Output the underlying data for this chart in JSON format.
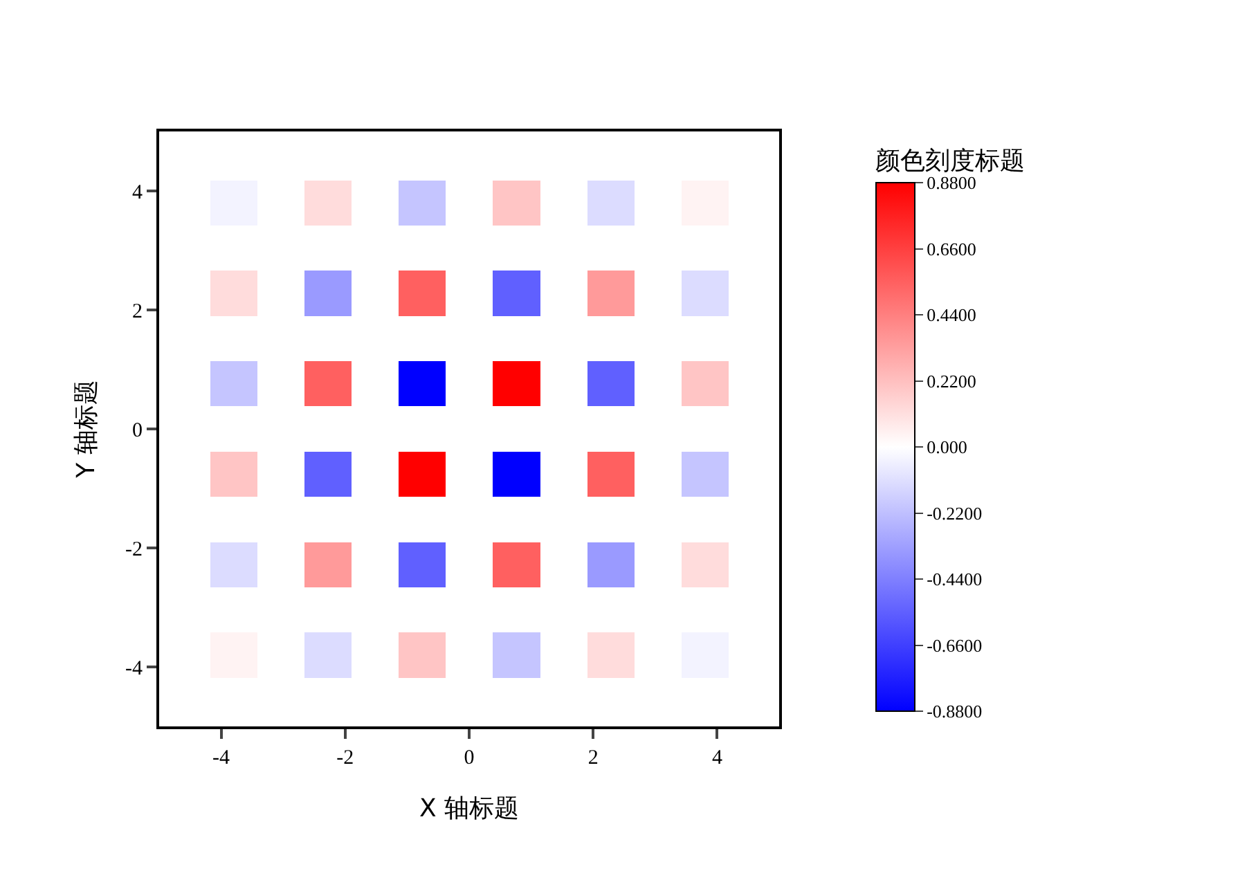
{
  "chart_data": {
    "type": "heatmap",
    "xlabel": "X 轴标题",
    "ylabel": "Y 轴标题",
    "clabel": "颜色刻度标题",
    "x": [
      -4.56,
      -3.8,
      -3.04,
      -2.28,
      -1.52,
      -0.76,
      0,
      0.76,
      1.52,
      2.28,
      3.04,
      3.8,
      4.56
    ],
    "y": [
      4.56,
      3.8,
      3.04,
      2.28,
      1.52,
      0.76,
      0,
      -0.76,
      -1.52,
      -2.28,
      -3.04,
      -3.8,
      -4.56
    ],
    "cells": [
      [
        0,
        0,
        0,
        0,
        0,
        0,
        0,
        0,
        0,
        0,
        0,
        0,
        0
      ],
      [
        0,
        -0.04,
        0,
        0.12,
        0,
        -0.2,
        0,
        0.2,
        0,
        -0.12,
        0,
        0.04,
        0
      ],
      [
        0,
        0,
        0,
        0,
        0,
        0,
        0,
        0,
        0,
        0,
        0,
        0,
        0
      ],
      [
        0,
        0.12,
        0,
        -0.35,
        0,
        0.55,
        0,
        -0.55,
        0,
        0.35,
        0,
        -0.12,
        0
      ],
      [
        0,
        0,
        0,
        0,
        0,
        0,
        0,
        0,
        0,
        0,
        0,
        0,
        0
      ],
      [
        0,
        -0.2,
        0,
        0.55,
        0,
        -0.88,
        0,
        0.88,
        0,
        -0.55,
        0,
        0.2,
        0
      ],
      [
        0,
        0,
        0,
        0,
        0,
        0,
        0,
        0,
        0,
        0,
        0,
        0,
        0
      ],
      [
        0,
        0.2,
        0,
        -0.55,
        0,
        0.88,
        0,
        -0.88,
        0,
        0.55,
        0,
        -0.2,
        0
      ],
      [
        0,
        0,
        0,
        0,
        0,
        0,
        0,
        0,
        0,
        0,
        0,
        0,
        0
      ],
      [
        0,
        -0.12,
        0,
        0.35,
        0,
        -0.55,
        0,
        0.55,
        0,
        -0.35,
        0,
        0.12,
        0
      ],
      [
        0,
        0,
        0,
        0,
        0,
        0,
        0,
        0,
        0,
        0,
        0,
        0,
        0
      ],
      [
        0,
        0.04,
        0,
        -0.12,
        0,
        0.2,
        0,
        -0.2,
        0,
        0.12,
        0,
        -0.04,
        0
      ],
      [
        0,
        0,
        0,
        0,
        0,
        0,
        0,
        0,
        0,
        0,
        0,
        0,
        0
      ]
    ],
    "xlim": [
      -5,
      5
    ],
    "ylim": [
      -5,
      5
    ],
    "xticks": [
      -4,
      -2,
      0,
      2,
      4
    ],
    "yticks": [
      -4,
      -2,
      0,
      2,
      4
    ],
    "clim": [
      -0.88,
      0.88
    ],
    "cticks": [
      {
        "value": 0.88,
        "label": "0.8800"
      },
      {
        "value": 0.66,
        "label": "0.6600"
      },
      {
        "value": 0.44,
        "label": "0.4400"
      },
      {
        "value": 0.22,
        "label": "0.2200"
      },
      {
        "value": 0,
        "label": "0.000"
      },
      {
        "value": -0.22,
        "label": "-0.2200"
      },
      {
        "value": -0.44,
        "label": "-0.4400"
      },
      {
        "value": -0.66,
        "label": "-0.6600"
      },
      {
        "value": -0.88,
        "label": "-0.8800"
      }
    ],
    "grid": false
  }
}
